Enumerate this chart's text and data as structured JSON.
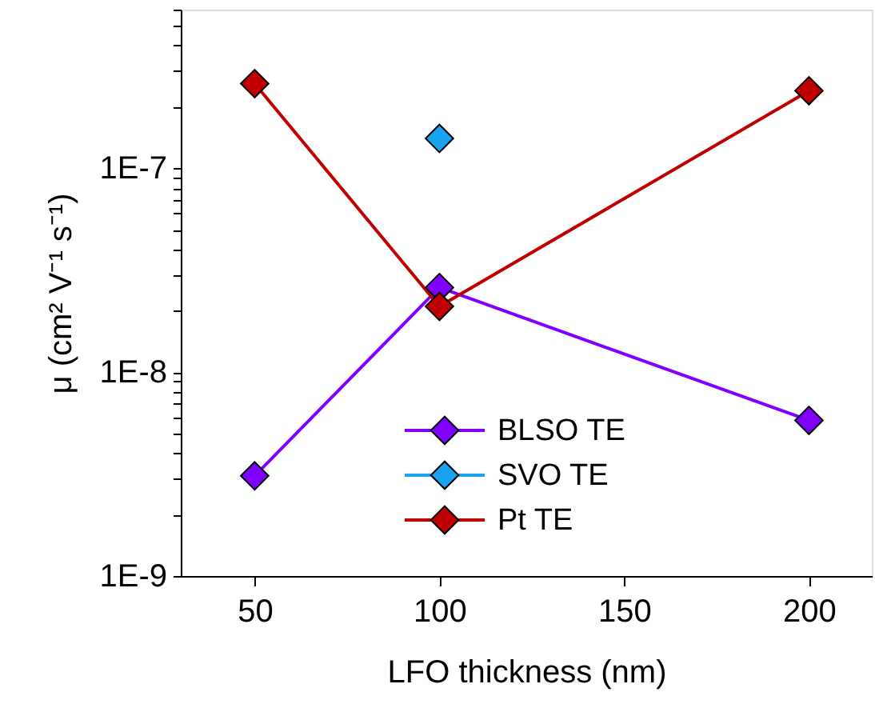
{
  "chart_data": {
    "type": "line",
    "xlabel": "LFO thickness (nm)",
    "ylabel": "μ (cm² V⁻¹ s⁻¹)",
    "x": [
      50,
      100,
      200
    ],
    "series": [
      {
        "name": "BLSO TE",
        "color": "#7f00ff",
        "values": [
          3.1e-09,
          2.6e-08,
          5.8e-09
        ]
      },
      {
        "name": "SVO TE",
        "color": "#1aa3f0",
        "values": [
          null,
          1.4e-07,
          null
        ]
      },
      {
        "name": "Pt TE",
        "color": "#c00000",
        "values": [
          2.6e-07,
          2.1e-08,
          2.4e-07
        ]
      }
    ],
    "xlim": [
      30,
      217
    ],
    "xticks": [
      50,
      100,
      150,
      200
    ],
    "ylim": [
      1e-09,
      6e-07
    ],
    "yticks": [
      {
        "value": 1e-09,
        "label": "1E-9"
      },
      {
        "value": 2e-09,
        "label": null
      },
      {
        "value": 3e-09,
        "label": null
      },
      {
        "value": 4e-09,
        "label": null
      },
      {
        "value": 5e-09,
        "label": null
      },
      {
        "value": 6e-09,
        "label": null
      },
      {
        "value": 7e-09,
        "label": null
      },
      {
        "value": 8e-09,
        "label": null
      },
      {
        "value": 9e-09,
        "label": null
      },
      {
        "value": 1e-08,
        "label": "1E-8"
      },
      {
        "value": 2e-08,
        "label": null
      },
      {
        "value": 3e-08,
        "label": null
      },
      {
        "value": 4e-08,
        "label": null
      },
      {
        "value": 5e-08,
        "label": null
      },
      {
        "value": 6e-08,
        "label": null
      },
      {
        "value": 7e-08,
        "label": null
      },
      {
        "value": 8e-08,
        "label": null
      },
      {
        "value": 9e-08,
        "label": null
      },
      {
        "value": 1e-07,
        "label": "1E-7"
      },
      {
        "value": 2e-07,
        "label": null
      },
      {
        "value": 3e-07,
        "label": null
      },
      {
        "value": 4e-07,
        "label": null
      },
      {
        "value": 5e-07,
        "label": null
      },
      {
        "value": 6e-07,
        "label": null
      }
    ],
    "log": "y",
    "grid": false,
    "legend": "bottom",
    "marker": "diamond",
    "line_style": "solid"
  }
}
